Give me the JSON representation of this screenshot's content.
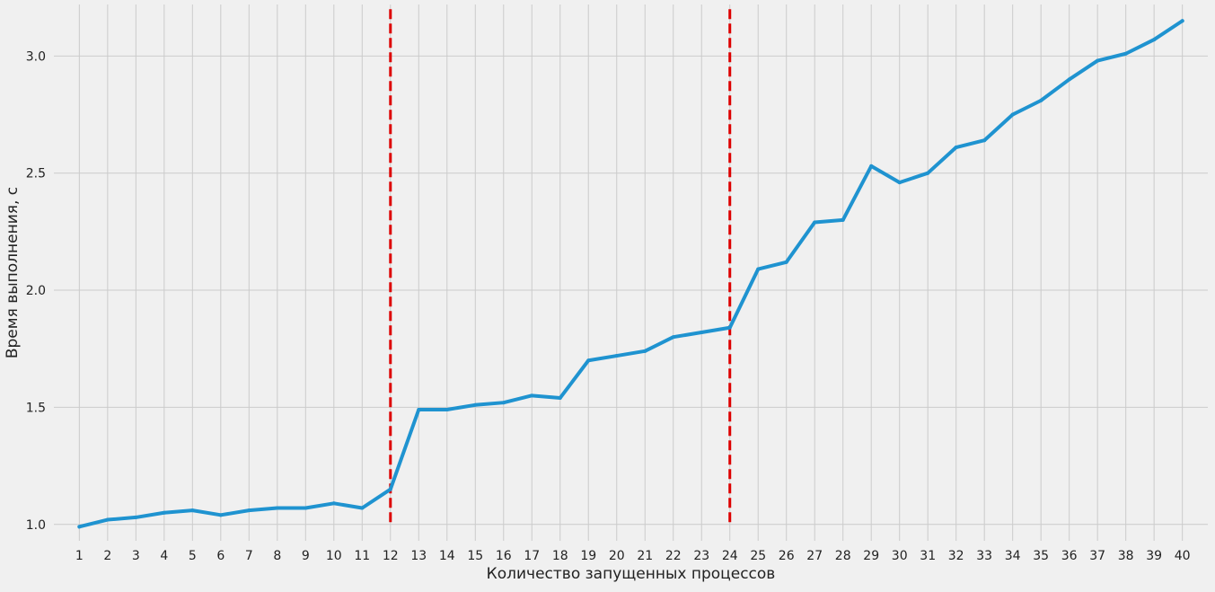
{
  "chart_data": {
    "type": "line",
    "title": "",
    "xlabel": "Количество запущенных процессов",
    "ylabel": "Время выполнения, с",
    "x": [
      1,
      2,
      3,
      4,
      5,
      6,
      7,
      8,
      9,
      10,
      11,
      12,
      13,
      14,
      15,
      16,
      17,
      18,
      19,
      20,
      21,
      22,
      23,
      24,
      25,
      26,
      27,
      28,
      29,
      30,
      31,
      32,
      33,
      34,
      35,
      36,
      37,
      38,
      39,
      40
    ],
    "xtick_labels": [
      "1",
      "2",
      "3",
      "4",
      "5",
      "6",
      "7",
      "8",
      "9",
      "10",
      "11",
      "12",
      "13",
      "14",
      "15",
      "16",
      "17",
      "18",
      "19",
      "20",
      "21",
      "22",
      "23",
      "24",
      "25",
      "26",
      "27",
      "28",
      "29",
      "30",
      "31",
      "32",
      "33",
      "34",
      "35",
      "36",
      "37",
      "38",
      "39",
      "40"
    ],
    "series": [
      {
        "color": "#1f93d0",
        "values": [
          0.99,
          1.02,
          1.03,
          1.05,
          1.06,
          1.04,
          1.06,
          1.07,
          1.07,
          1.09,
          1.07,
          1.15,
          1.49,
          1.49,
          1.51,
          1.52,
          1.55,
          1.54,
          1.7,
          1.72,
          1.74,
          1.8,
          1.82,
          1.84,
          2.09,
          2.12,
          2.29,
          2.3,
          2.53,
          2.46,
          2.5,
          2.61,
          2.64,
          2.75,
          2.81,
          2.9,
          2.98,
          3.01,
          3.07,
          3.15
        ]
      }
    ],
    "vlines": [
      {
        "x": 12,
        "color": "#dd0000",
        "style": "dashed",
        "y_range": [
          1.0,
          3.2
        ]
      },
      {
        "x": 24,
        "color": "#dd0000",
        "style": "dashed",
        "y_range": [
          1.0,
          3.2
        ]
      }
    ],
    "ylim": [
      0.93,
      3.22
    ],
    "xlim": [
      0.1,
      40.9
    ],
    "yticks": [
      1.0,
      1.5,
      2.0,
      2.5,
      3.0
    ],
    "ytick_labels": [
      "1.0",
      "1.5",
      "2.0",
      "2.5",
      "3.0"
    ],
    "grid": true,
    "colors": {
      "background": "#f0f0f0",
      "grid": "#cbcbcb",
      "line": "#1f93d0",
      "vline": "#dd0000",
      "text": "#222222"
    }
  }
}
